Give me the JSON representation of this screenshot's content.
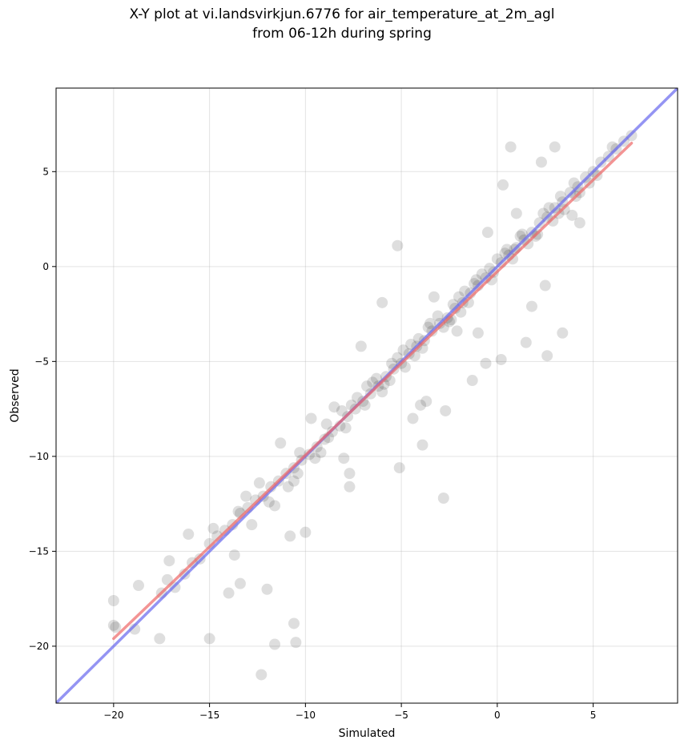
{
  "chart_data": {
    "type": "scatter",
    "title_line_1": "X-Y plot at vi.landsvirkjun.6776 for air_temperature_at_2m_agl",
    "title_line_2": "from 06-12h during spring",
    "xlabel": "Simulated",
    "ylabel": "Observed",
    "xlim": [
      -23.0,
      9.4
    ],
    "ylim": [
      -23.0,
      9.4
    ],
    "xticks": [
      -20,
      -15,
      -10,
      -5,
      0,
      5
    ],
    "yticks": [
      -20,
      -15,
      -10,
      -5,
      0,
      5
    ],
    "xtick_labels": [
      "−20",
      "−15",
      "−10",
      "−5",
      "0",
      "5"
    ],
    "ytick_labels": [
      "−20",
      "−15",
      "−10",
      "−5",
      "0",
      "5"
    ],
    "grid": true,
    "point_color": "#000000",
    "point_opacity": 0.08,
    "series": [
      {
        "kind": "points",
        "x": [
          -20.0,
          -19.9,
          -20.0,
          -18.9,
          -18.7,
          -17.5,
          -17.2,
          -16.8,
          -16.3,
          -15.9,
          -15.5,
          -15.0,
          -14.6,
          -14.2,
          -13.8,
          -13.4,
          -13.0,
          -12.6,
          -12.2,
          -11.8,
          -11.4,
          -11.0,
          -10.6,
          -10.2,
          -9.8,
          -9.4,
          -9.0,
          -8.6,
          -8.2,
          -7.8,
          -7.4,
          -7.0,
          -6.6,
          -6.2,
          -5.8,
          -5.4,
          -5.0,
          -4.6,
          -4.2,
          -3.8,
          -3.4,
          -3.0,
          -2.6,
          -2.2,
          -1.8,
          -1.4,
          -1.0,
          -0.6,
          -0.2,
          0.2,
          0.6,
          1.0,
          1.4,
          1.8,
          2.2,
          2.6,
          3.0,
          3.4,
          3.8,
          4.2,
          4.6,
          5.0,
          5.4,
          5.8,
          6.2,
          6.6,
          7.0,
          -17.1,
          -13.1,
          -12.4,
          -11.6,
          -10.6,
          -9.5,
          -8.8,
          -7.6,
          -7.3,
          -6.5,
          -6.0,
          -5.5,
          -5.2,
          -4.8,
          -4.1,
          -3.5,
          -2.8,
          -2.3,
          -1.9,
          -1.2,
          -0.4,
          0.4,
          1.2,
          2.0,
          2.9,
          3.5,
          4.3,
          -14.8,
          -12.8,
          -10.9,
          -9.2,
          -8.1,
          -6.9,
          -5.9,
          -4.5,
          -3.9,
          -3.1,
          -2.0,
          -1.5,
          -0.8,
          0.0,
          0.8,
          1.6,
          2.4,
          3.2,
          4.0,
          4.8,
          -16.1,
          -13.5,
          -11.9,
          -10.3,
          -8.9,
          -7.9,
          -6.8,
          -6.3,
          -5.6,
          -4.9,
          -4.3,
          -3.6,
          -2.5,
          -1.7,
          -1.1,
          -0.3,
          0.5,
          1.3,
          2.1,
          2.7,
          3.3,
          4.1,
          5.2,
          6.0,
          -11.3,
          -10.4,
          -8.0,
          -3.7,
          -2.1,
          1.0,
          2.5,
          -6.0,
          -4.0,
          -1.0,
          0.3,
          1.8,
          3.0,
          -10.0,
          -7.1,
          -5.1,
          -3.3,
          -2.7,
          -1.3,
          0.9,
          2.3,
          -9.7,
          -7.7,
          -4.4,
          -2.4,
          -0.6,
          1.5,
          3.9,
          -12.0,
          -10.8,
          -12.3,
          -11.6,
          -13.7,
          -10.6,
          -10.5,
          -13.4,
          -15.0,
          -17.6,
          -14.0,
          -8.5,
          -7.7,
          -3.9,
          -2.8,
          -0.5,
          2.6,
          3.4,
          -5.2,
          0.2,
          0.7,
          4.3
        ],
        "y": [
          -17.6,
          -19.0,
          -18.9,
          -19.1,
          -16.8,
          -17.2,
          -16.5,
          -16.9,
          -16.2,
          -15.6,
          -15.4,
          -14.6,
          -14.2,
          -13.9,
          -13.6,
          -13.0,
          -12.7,
          -12.3,
          -12.1,
          -11.6,
          -11.3,
          -10.9,
          -10.6,
          -10.2,
          -9.9,
          -9.5,
          -9.1,
          -8.7,
          -8.4,
          -7.9,
          -7.5,
          -7.1,
          -6.7,
          -6.3,
          -5.8,
          -5.4,
          -5.1,
          -4.6,
          -4.2,
          -3.9,
          -3.4,
          -3.0,
          -2.7,
          -2.2,
          -1.9,
          -1.4,
          -1.0,
          -0.6,
          -0.3,
          0.2,
          0.6,
          1.0,
          1.4,
          1.8,
          2.3,
          2.6,
          3.1,
          3.4,
          3.9,
          4.2,
          4.7,
          5.0,
          5.5,
          5.8,
          6.2,
          6.6,
          6.9,
          -15.5,
          -12.1,
          -11.4,
          -12.6,
          -11.3,
          -10.1,
          -9.0,
          -7.3,
          -6.9,
          -6.1,
          -6.6,
          -5.1,
          -4.8,
          -5.3,
          -3.8,
          -3.0,
          -3.2,
          -2.0,
          -2.4,
          -0.9,
          -0.1,
          0.7,
          1.6,
          1.6,
          2.4,
          3.0,
          3.9,
          -13.8,
          -13.6,
          -11.6,
          -9.8,
          -7.6,
          -7.3,
          -6.2,
          -4.1,
          -4.3,
          -2.6,
          -1.6,
          -1.9,
          -0.4,
          0.4,
          0.4,
          1.2,
          2.8,
          2.8,
          4.4,
          4.4,
          -14.1,
          -12.9,
          -12.4,
          -9.8,
          -8.3,
          -8.5,
          -6.3,
          -5.9,
          -6.0,
          -4.4,
          -4.7,
          -3.2,
          -2.9,
          -1.3,
          -0.7,
          -0.7,
          0.9,
          1.7,
          1.7,
          3.1,
          3.7,
          3.7,
          4.8,
          6.3,
          -9.3,
          -10.9,
          -10.1,
          -7.1,
          -3.4,
          2.8,
          -1.0,
          -1.9,
          -7.3,
          -3.5,
          4.3,
          -2.1,
          6.3,
          -14.0,
          -4.2,
          -10.6,
          -1.6,
          -7.6,
          -6.0,
          0.9,
          5.5,
          -8.0,
          -11.6,
          -8.0,
          -2.8,
          -5.1,
          -4.0,
          2.7,
          -17.0,
          -14.2,
          -21.5,
          -19.9,
          -15.2,
          -18.8,
          -19.8,
          -16.7,
          -19.6,
          -19.6,
          -17.2,
          -7.4,
          -10.9,
          -9.4,
          -12.2,
          1.8,
          -4.7,
          -3.5,
          1.1,
          -4.9,
          6.3,
          2.3
        ]
      },
      {
        "kind": "line",
        "color": "#6666ee",
        "x": [
          -23.0,
          9.4
        ],
        "y": [
          -23.0,
          9.4
        ]
      },
      {
        "kind": "line",
        "color": "#ee6666",
        "x": [
          -20.0,
          7.0
        ],
        "y": [
          -19.6,
          6.5
        ]
      }
    ]
  }
}
